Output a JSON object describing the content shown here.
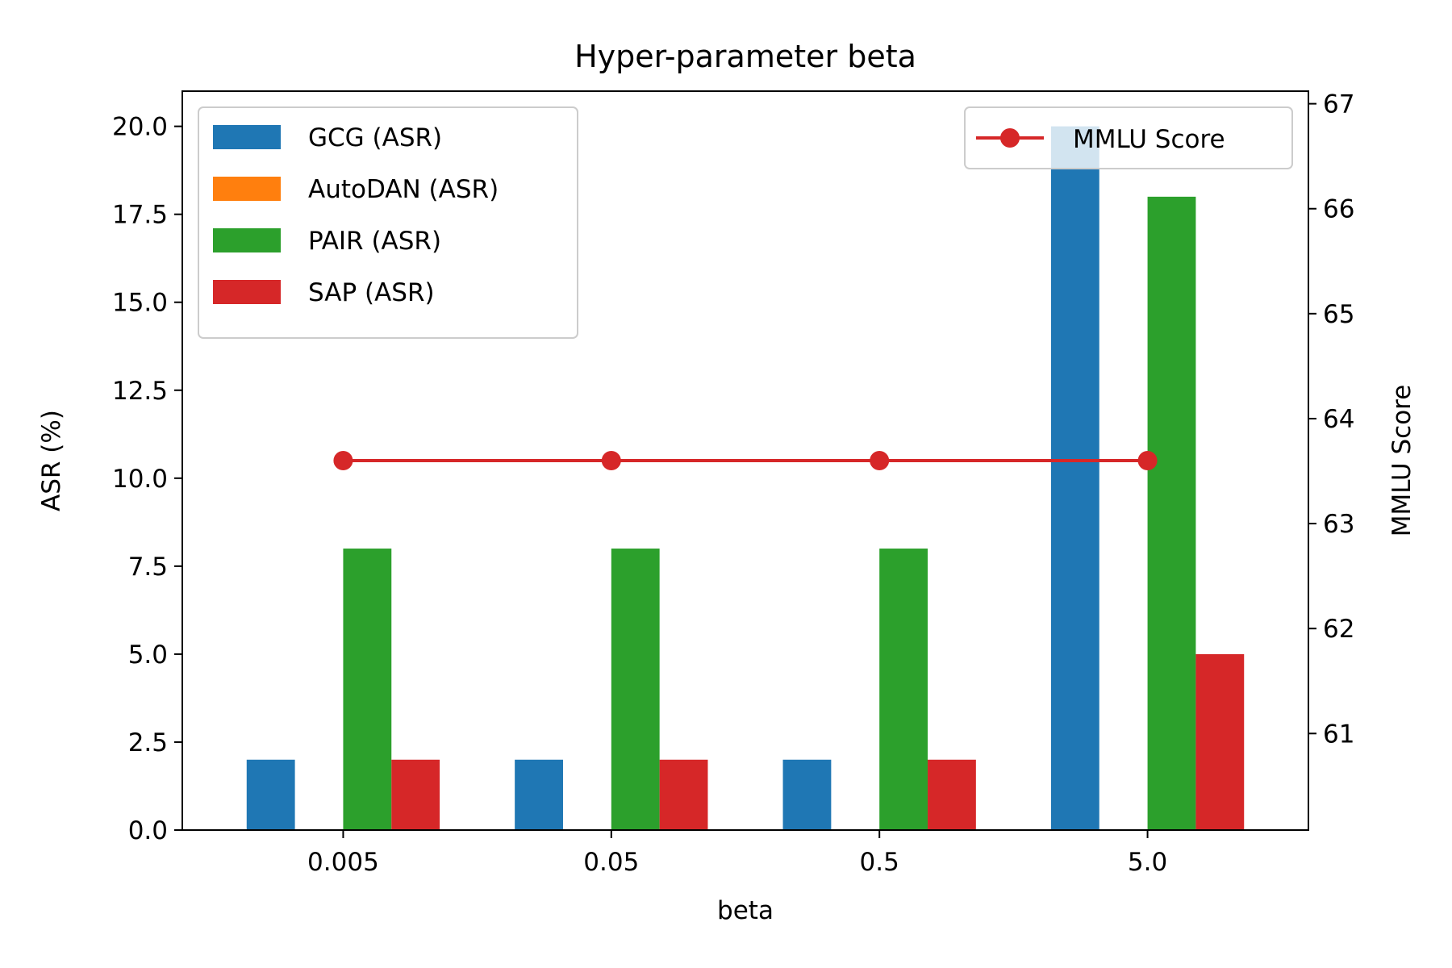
{
  "chart_data": {
    "type": "bar",
    "title": "Hyper-parameter beta",
    "xlabel": "beta",
    "ylabel": "ASR (%)",
    "y2label": "MMLU Score",
    "categories": [
      "0.005",
      "0.05",
      "0.5",
      "5.0"
    ],
    "ylim": [
      0,
      21
    ],
    "y2lim": [
      60.08,
      67.12
    ],
    "yticks": [
      "0.0",
      "2.5",
      "5.0",
      "7.5",
      "10.0",
      "12.5",
      "15.0",
      "17.5",
      "20.0"
    ],
    "y2ticks": [
      "61",
      "62",
      "63",
      "64",
      "65",
      "66",
      "67"
    ],
    "series": [
      {
        "name": "GCG (ASR)",
        "color": "#1f77b4",
        "values": [
          2,
          2,
          2,
          20
        ]
      },
      {
        "name": "AutoDAN (ASR)",
        "color": "#ff7f0e",
        "values": [
          0,
          0,
          0,
          0
        ]
      },
      {
        "name": "PAIR (ASR)",
        "color": "#2ca02c",
        "values": [
          8,
          8,
          8,
          18
        ]
      },
      {
        "name": "SAP (ASR)",
        "color": "#d62728",
        "values": [
          2,
          2,
          2,
          5
        ]
      }
    ],
    "line_series": {
      "name": "MMLU Score",
      "color": "#d62728",
      "axis": "right",
      "values": [
        63.6,
        63.6,
        63.6,
        63.6
      ]
    },
    "grid": false,
    "legend_bars_placement": "upper-left",
    "legend_line_placement": "upper-right"
  }
}
